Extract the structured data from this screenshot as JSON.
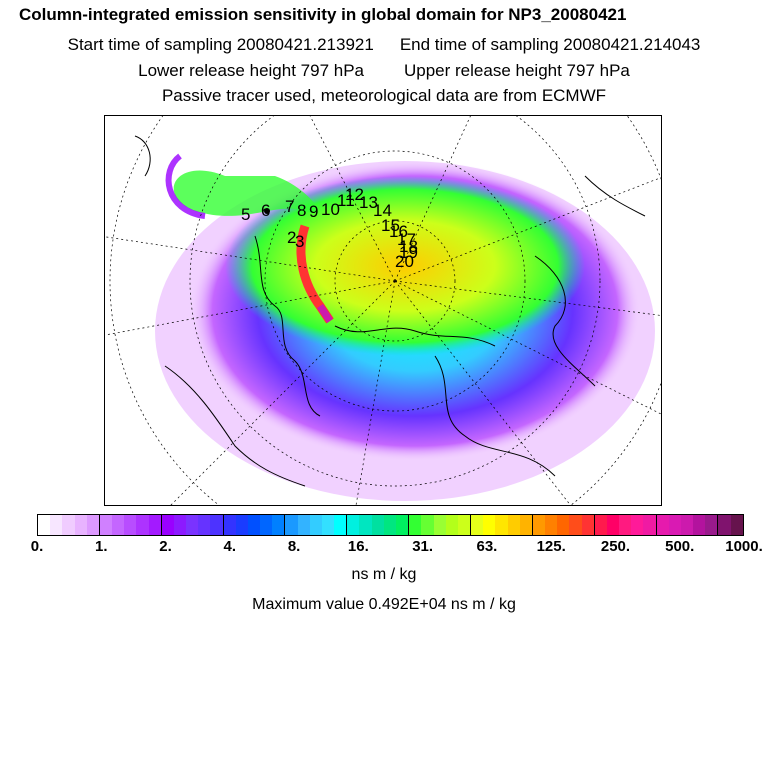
{
  "title": "Column-integrated emission sensitivity in global domain for NP3_20080421",
  "sampling": {
    "start": "Start time of sampling 20080421.213921",
    "end": "End time of sampling 20080421.214043"
  },
  "release": {
    "lower": "Lower release height  797 hPa",
    "upper": "Upper release height  797 hPa"
  },
  "note": "Passive tracer used, meteorological data are from ECMWF",
  "colorbar": {
    "ticks": [
      "0.",
      "1.",
      "2.",
      "4.",
      "8.",
      "16.",
      "31.",
      "63.",
      "125.",
      "250.",
      "500.",
      "1000."
    ],
    "colors": [
      "#ffffff",
      "#f7e6ff",
      "#f0ccff",
      "#e8b3ff",
      "#dd99ff",
      "#d080ff",
      "#c466ff",
      "#b84dff",
      "#ad33ff",
      "#a31aff",
      "#9900ff",
      "#8c1aff",
      "#7a33ff",
      "#6633ff",
      "#4d33ff",
      "#3333ff",
      "#1a3cff",
      "#0050ff",
      "#0066ff",
      "#0080ff",
      "#1a99ff",
      "#33b3ff",
      "#33ccff",
      "#33e0ff",
      "#00ffff",
      "#00f0e0",
      "#00e6c0",
      "#00e0a0",
      "#00e680",
      "#00f060",
      "#33ff33",
      "#66ff33",
      "#99ff33",
      "#b3ff1a",
      "#ccff1a",
      "#e6ff1a",
      "#ffff00",
      "#ffe600",
      "#ffcc00",
      "#ffb300",
      "#ff9900",
      "#ff8000",
      "#ff6600",
      "#ff4d1a",
      "#ff3333",
      "#ff1a4d",
      "#ff0066",
      "#ff1a80",
      "#ff1a99",
      "#f01aa3",
      "#e61aad",
      "#d91ab3",
      "#cc1aad",
      "#b3139e",
      "#991a8c",
      "#80136e",
      "#66134d"
    ],
    "units": "ns m / kg",
    "max_value": "Maximum value  0.492E+04 ns m / kg"
  },
  "map": {
    "labels": [
      "5",
      "6",
      "7",
      "8",
      "9",
      "10",
      "11",
      "12",
      "13",
      "14",
      "15",
      "16",
      "17",
      "18",
      "19",
      "20",
      "2",
      "3"
    ]
  }
}
